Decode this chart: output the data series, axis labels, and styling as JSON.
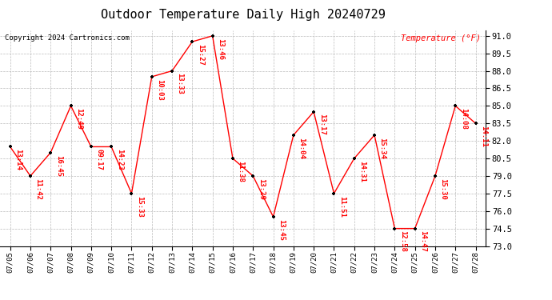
{
  "title": "Outdoor Temperature Daily High 20240729",
  "copyright": "Copyright 2024 Cartronics.com",
  "ylabel": "Temperature (°F)",
  "dates": [
    "07/05",
    "07/06",
    "07/07",
    "07/08",
    "07/09",
    "07/10",
    "07/11",
    "07/12",
    "07/13",
    "07/14",
    "07/15",
    "07/16",
    "07/17",
    "07/18",
    "07/19",
    "07/20",
    "07/21",
    "07/22",
    "07/23",
    "07/24",
    "07/25",
    "07/26",
    "07/27",
    "07/28"
  ],
  "times": [
    "13:14",
    "11:42",
    "16:45",
    "12:49",
    "09:17",
    "14:23",
    "15:33",
    "10:03",
    "13:33",
    "15:27",
    "13:46",
    "11:38",
    "13:29",
    "13:45",
    "14:04",
    "13:17",
    "11:51",
    "14:31",
    "15:34",
    "12:58",
    "14:47",
    "15:30",
    "14:08",
    "14:11"
  ],
  "values": [
    81.5,
    79.0,
    81.0,
    85.0,
    81.5,
    81.5,
    77.5,
    87.5,
    88.0,
    90.5,
    91.0,
    80.5,
    79.0,
    75.5,
    82.5,
    84.5,
    77.5,
    80.5,
    82.5,
    74.5,
    74.5,
    79.0,
    85.0,
    83.5
  ],
  "ylim": [
    73.0,
    91.5
  ],
  "yticks": [
    73.0,
    74.5,
    76.0,
    77.5,
    79.0,
    80.5,
    82.0,
    83.5,
    85.0,
    86.5,
    88.0,
    89.5,
    91.0
  ],
  "line_color": "red",
  "marker_color": "black",
  "title_fontsize": 11,
  "background_color": "#ffffff",
  "grid_color": "#bbbbbb"
}
